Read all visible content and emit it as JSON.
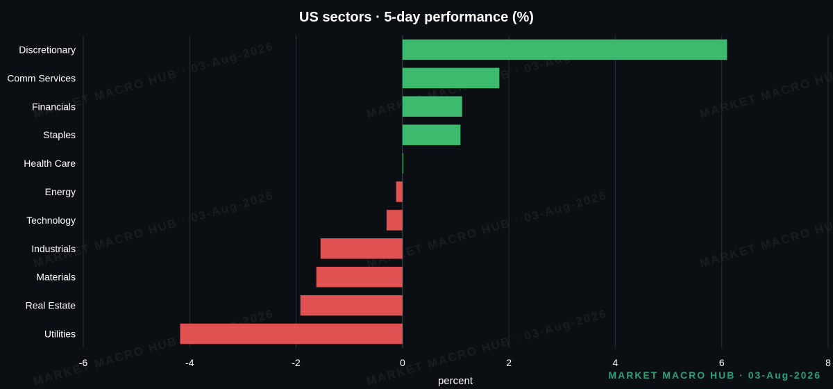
{
  "chart_data": {
    "type": "bar",
    "orientation": "horizontal",
    "title": "US sectors · 5-day performance (%)",
    "xlabel": "percent",
    "ylabel": "",
    "xlim": [
      -6,
      8
    ],
    "xticks": [
      -6,
      -4,
      -2,
      0,
      2,
      4,
      6,
      8
    ],
    "grid": true,
    "categories": [
      "Discretionary",
      "Comm Services",
      "Financials",
      "Staples",
      "Health Care",
      "Energy",
      "Technology",
      "Industrials",
      "Materials",
      "Real Estate",
      "Utilities"
    ],
    "values": [
      6.1,
      1.82,
      1.12,
      1.09,
      0.01,
      -0.12,
      -0.3,
      -1.54,
      -1.62,
      -1.92,
      -4.18
    ],
    "colors": {
      "positive": "#3dba6e",
      "negative": "#e05252"
    }
  },
  "watermark": "MARKET MACRO HUB · 03-Aug-2026",
  "footer_mark": "MARKET MACRO HUB · 03-Aug-2026"
}
